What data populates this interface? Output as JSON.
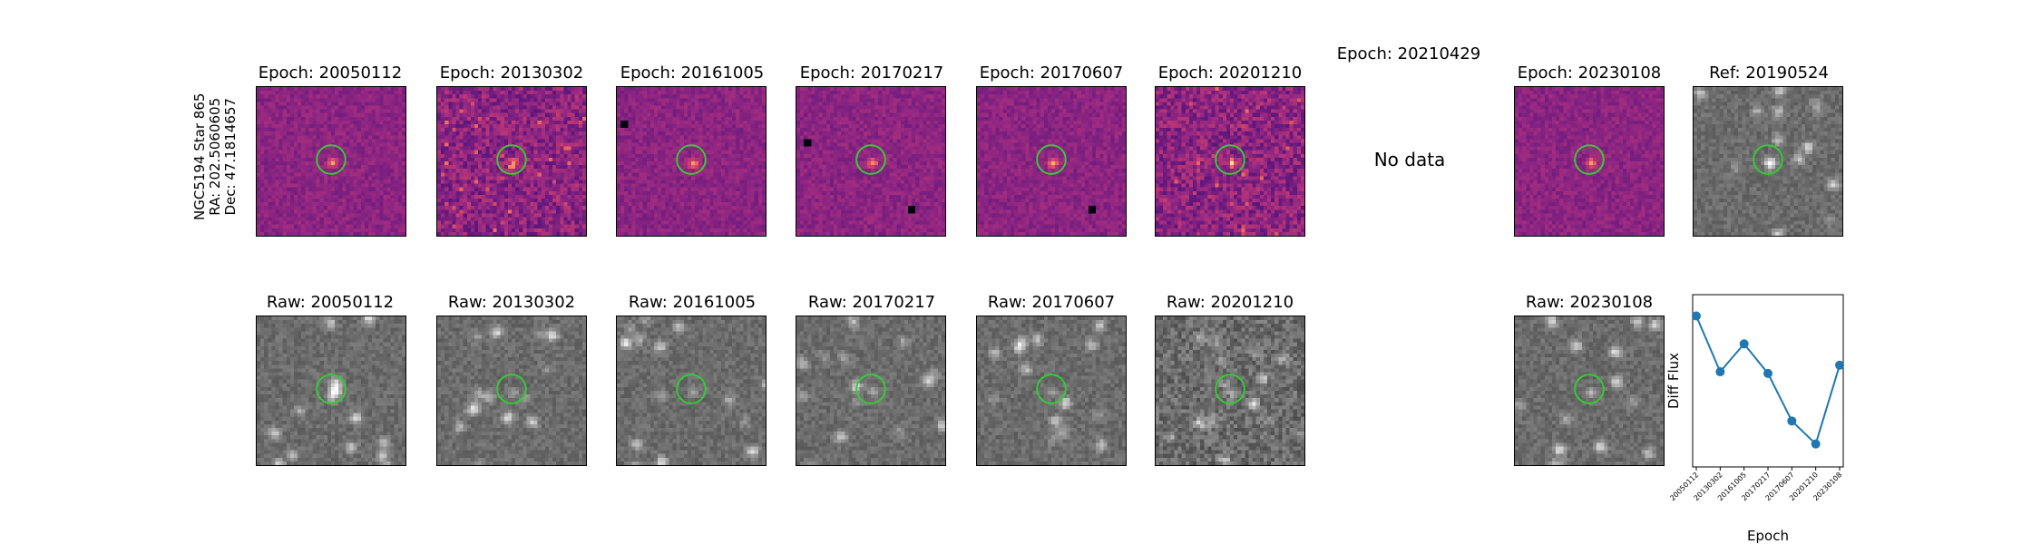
{
  "side_label": {
    "line1": "NGC5194 Star 865",
    "line2": "RA: 202.5060605",
    "line3": "Dec: 47.1814657"
  },
  "diff_titles": [
    "Epoch: 20050112",
    "Epoch: 20130302",
    "Epoch: 20161005",
    "Epoch: 20170217",
    "Epoch: 20170607",
    "Epoch: 20201210",
    "Epoch: 20210429",
    "Epoch: 20230108"
  ],
  "ref_title": "Ref: 20190524",
  "raw_titles": [
    "Raw: 20050112",
    "Raw: 20130302",
    "Raw: 20161005",
    "Raw: 20170217",
    "Raw: 20170607",
    "Raw: 20201210",
    "Raw: 20230108"
  ],
  "no_data_text": "No data",
  "colors": {
    "circle": "#33cc33",
    "line": "#1f77b4"
  },
  "chart_data": {
    "type": "line",
    "x": [
      "20050112",
      "20130302",
      "20161005",
      "20170217",
      "20170607",
      "20201210",
      "20230108"
    ],
    "values": [
      0.92,
      0.58,
      0.75,
      0.57,
      0.28,
      0.14,
      0.62
    ],
    "xlabel": "Epoch",
    "ylabel": "Diff Flux",
    "ylim": [
      0,
      1.05
    ],
    "grid": false
  }
}
